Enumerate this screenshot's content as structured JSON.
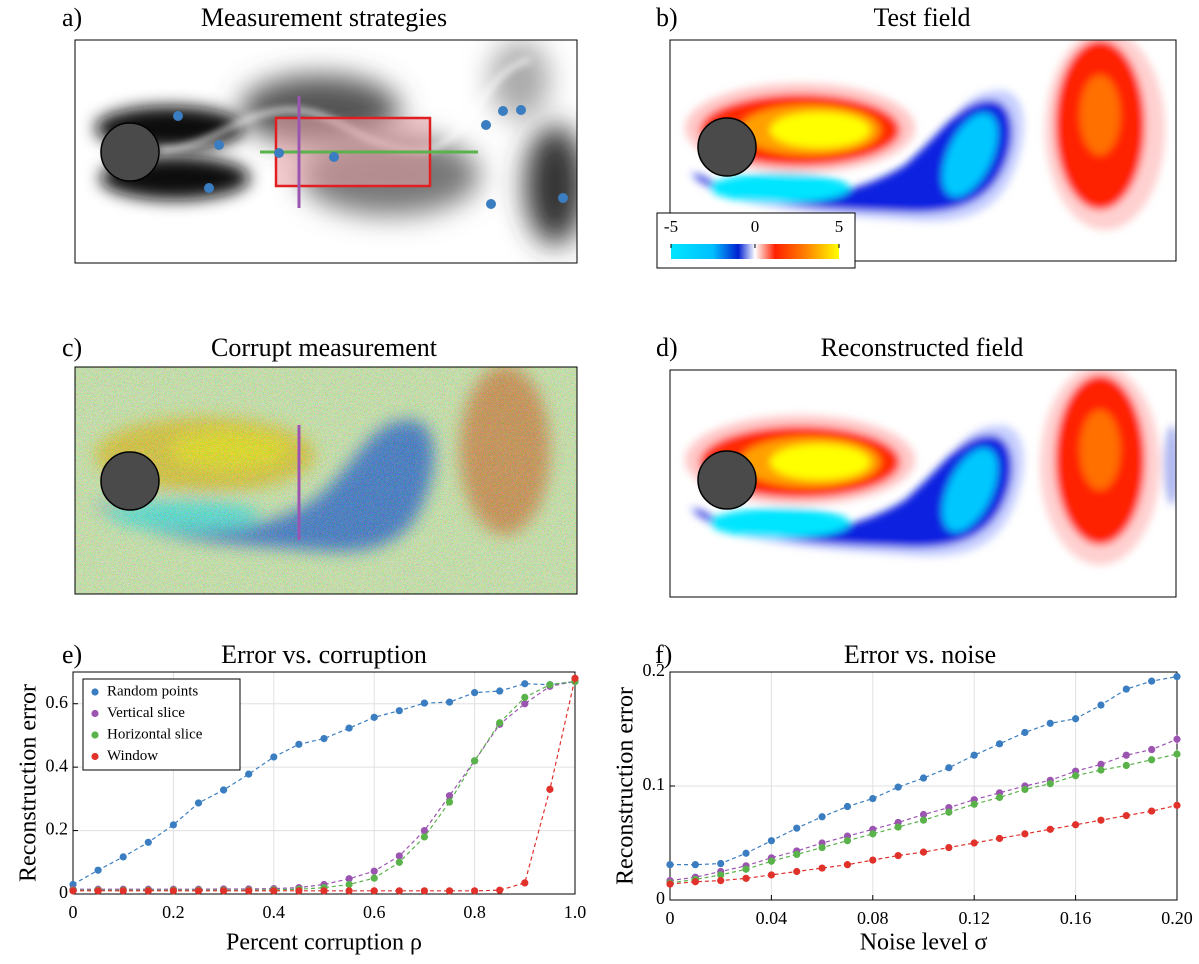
{
  "panels": [
    {
      "label": "a)",
      "title": "Measurement strategies"
    },
    {
      "label": "b)",
      "title": "Test field"
    },
    {
      "label": "c)",
      "title": "Corrupt measurement"
    },
    {
      "label": "d)",
      "title": "Reconstructed field"
    }
  ],
  "colorbar": {
    "range": [
      -5,
      5
    ],
    "ticks": [
      -5,
      0,
      5
    ]
  },
  "chart_data": [
    {
      "type": "line",
      "panel_label": "e)",
      "title": "Error vs. corruption",
      "xlabel": "Percent corruption ρ",
      "ylabel": "Reconstruction error",
      "xlim": [
        0,
        1
      ],
      "ylim": [
        0,
        0.7
      ],
      "xticks": [
        0,
        0.2,
        0.4,
        0.6,
        0.8,
        {
          "value": 1,
          "label": "1.0"
        }
      ],
      "yticks": [
        0,
        0.2,
        0.4,
        0.6
      ],
      "grid": true,
      "legend": "upper left",
      "x": [
        0,
        0.05,
        0.1,
        0.15,
        0.2,
        0.25,
        0.3,
        0.35,
        0.4,
        0.45,
        0.5,
        0.55,
        0.6,
        0.65,
        0.7,
        0.75,
        0.8,
        0.85,
        0.9,
        0.95,
        1
      ],
      "series": [
        {
          "name": "Random points",
          "color": "#3a7dc0",
          "values": [
            0.03,
            0.075,
            0.117,
            0.163,
            0.218,
            0.287,
            0.328,
            0.378,
            0.432,
            0.472,
            0.49,
            0.523,
            0.557,
            0.578,
            0.602,
            0.605,
            0.635,
            0.64,
            0.663,
            0.66,
            0.67
          ]
        },
        {
          "name": "Vertical slice",
          "color": "#9b55b0",
          "values": [
            0.015,
            0.015,
            0.015,
            0.015,
            0.015,
            0.015,
            0.016,
            0.016,
            0.017,
            0.02,
            0.03,
            0.048,
            0.072,
            0.12,
            0.2,
            0.31,
            0.42,
            0.535,
            0.6,
            0.655,
            0.67
          ]
        },
        {
          "name": "Horizontal slice",
          "color": "#5ab34a",
          "values": [
            0.012,
            0.012,
            0.012,
            0.012,
            0.012,
            0.012,
            0.012,
            0.012,
            0.013,
            0.015,
            0.02,
            0.03,
            0.05,
            0.1,
            0.18,
            0.29,
            0.42,
            0.54,
            0.62,
            0.66,
            0.67
          ]
        },
        {
          "name": "Window",
          "color": "#e0312b",
          "values": [
            0.01,
            0.01,
            0.01,
            0.01,
            0.01,
            0.01,
            0.01,
            0.01,
            0.01,
            0.01,
            0.01,
            0.01,
            0.01,
            0.01,
            0.01,
            0.01,
            0.01,
            0.012,
            0.035,
            0.33,
            0.68
          ]
        }
      ]
    },
    {
      "type": "line",
      "panel_label": "f)",
      "title": "Error vs. noise",
      "xlabel": "Noise level σ",
      "ylabel": "Reconstruction error",
      "xlim": [
        0,
        0.2
      ],
      "ylim": [
        0,
        0.2
      ],
      "xticks": [
        0,
        0.04,
        0.08,
        0.12,
        0.16,
        {
          "value": 0.2,
          "label": "0.20"
        }
      ],
      "yticks": [
        0,
        0.1,
        0.2
      ],
      "grid": true,
      "x": [
        0,
        0.01,
        0.02,
        0.03,
        0.04,
        0.05,
        0.06,
        0.07,
        0.08,
        0.09,
        0.1,
        0.11,
        0.12,
        0.13,
        0.14,
        0.15,
        0.16,
        0.17,
        0.18,
        0.19,
        0.2
      ],
      "series": [
        {
          "name": "Random points",
          "color": "#3a7dc0",
          "values": [
            0.031,
            0.031,
            0.032,
            0.041,
            0.052,
            0.063,
            0.073,
            0.082,
            0.089,
            0.099,
            0.107,
            0.116,
            0.127,
            0.137,
            0.147,
            0.155,
            0.159,
            0.171,
            0.185,
            0.192,
            0.196
          ],
          "errors": [
            0.002,
            0.002,
            0.002,
            0.002,
            0.002,
            0.002,
            0.002,
            0.002,
            0.002,
            0.002,
            0.002,
            0.002,
            0.002,
            0.002,
            0.002,
            0.003,
            0.003,
            0.003,
            0.003,
            0.003,
            0.003
          ]
        },
        {
          "name": "Vertical slice",
          "color": "#9b55b0",
          "values": [
            0.017,
            0.02,
            0.025,
            0.03,
            0.037,
            0.043,
            0.05,
            0.056,
            0.062,
            0.068,
            0.075,
            0.081,
            0.088,
            0.094,
            0.1,
            0.105,
            0.113,
            0.119,
            0.127,
            0.132,
            0.141
          ],
          "errors": [
            0.002,
            0.002,
            0.002,
            0.002,
            0.002,
            0.002,
            0.002,
            0.002,
            0.002,
            0.002,
            0.002,
            0.002,
            0.002,
            0.002,
            0.002,
            0.003,
            0.003,
            0.003,
            0.003,
            0.003,
            0.004
          ]
        },
        {
          "name": "Horizontal slice",
          "color": "#5ab34a",
          "values": [
            0.015,
            0.018,
            0.022,
            0.027,
            0.034,
            0.04,
            0.046,
            0.052,
            0.058,
            0.064,
            0.07,
            0.077,
            0.084,
            0.09,
            0.097,
            0.102,
            0.109,
            0.114,
            0.118,
            0.123,
            0.128
          ],
          "errors": [
            0.002,
            0.002,
            0.002,
            0.002,
            0.002,
            0.002,
            0.002,
            0.002,
            0.002,
            0.002,
            0.002,
            0.002,
            0.002,
            0.002,
            0.002,
            0.003,
            0.003,
            0.003,
            0.003,
            0.003,
            0.004
          ]
        },
        {
          "name": "Window",
          "color": "#e0312b",
          "values": [
            0.014,
            0.016,
            0.017,
            0.019,
            0.022,
            0.025,
            0.028,
            0.031,
            0.035,
            0.039,
            0.042,
            0.046,
            0.05,
            0.054,
            0.058,
            0.062,
            0.066,
            0.07,
            0.074,
            0.078,
            0.083
          ],
          "errors": [
            0.001,
            0.001,
            0.001,
            0.001,
            0.001,
            0.001,
            0.001,
            0.001,
            0.001,
            0.001,
            0.001,
            0.001,
            0.001,
            0.002,
            0.002,
            0.002,
            0.002,
            0.002,
            0.002,
            0.002,
            0.002
          ]
        }
      ]
    }
  ]
}
